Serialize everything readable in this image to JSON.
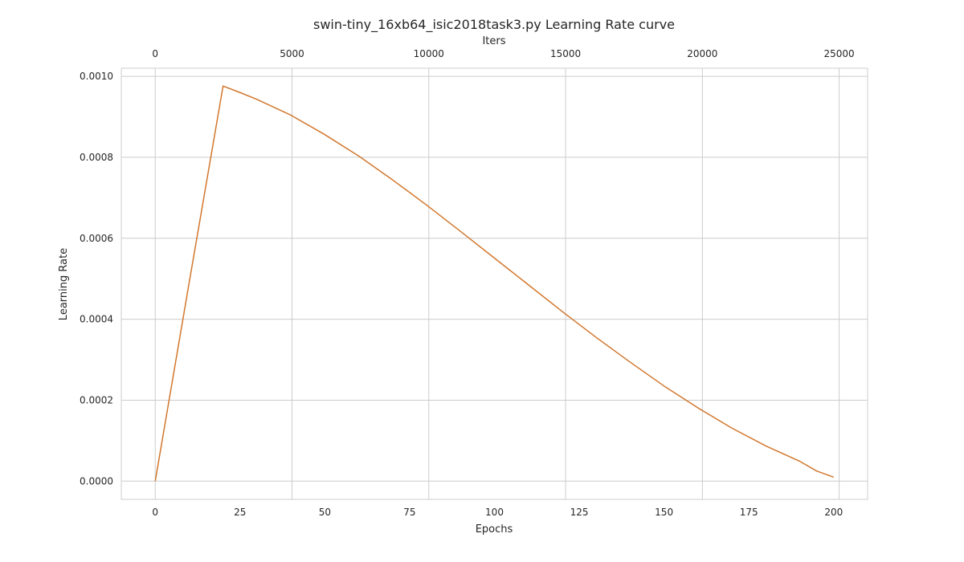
{
  "chart_data": {
    "type": "line",
    "title": "swin-tiny_16xb64_isic2018task3.py Learning Rate curve",
    "xlabel": "Epochs",
    "ylabel": "Learning Rate",
    "top_xlabel": "Iters",
    "xlim": [
      -10,
      210
    ],
    "ylim": [
      -4.5e-05,
      0.00102
    ],
    "xticks": [
      0,
      25,
      50,
      75,
      100,
      125,
      150,
      175,
      200
    ],
    "yticks": [
      0.0,
      0.0002,
      0.0004,
      0.0006,
      0.0008,
      0.001
    ],
    "ytick_labels": [
      "0.0000",
      "0.0002",
      "0.0004",
      "0.0006",
      "0.0008",
      "0.0010"
    ],
    "top_xticks": [
      0,
      5000,
      10000,
      15000,
      20000,
      25000
    ],
    "top_xlim": [
      -1240,
      26040
    ],
    "grid": true,
    "line_color": "#d2772d",
    "series": [
      {
        "x": [
          0,
          10,
          20,
          25,
          30,
          40,
          50,
          60,
          70,
          80,
          90,
          100,
          110,
          120,
          130,
          140,
          150,
          160,
          170,
          180,
          190,
          195,
          200
        ],
        "values": [
          0.0,
          0.00049,
          0.000976,
          0.00096,
          0.000943,
          0.000904,
          0.000856,
          0.000803,
          0.000744,
          0.000682,
          0.000617,
          0.000551,
          0.000485,
          0.000419,
          0.000355,
          0.000294,
          0.000235,
          0.000181,
          0.000131,
          8.7e-05,
          4.9e-05,
          2.5e-05,
          1e-05
        ]
      }
    ]
  }
}
